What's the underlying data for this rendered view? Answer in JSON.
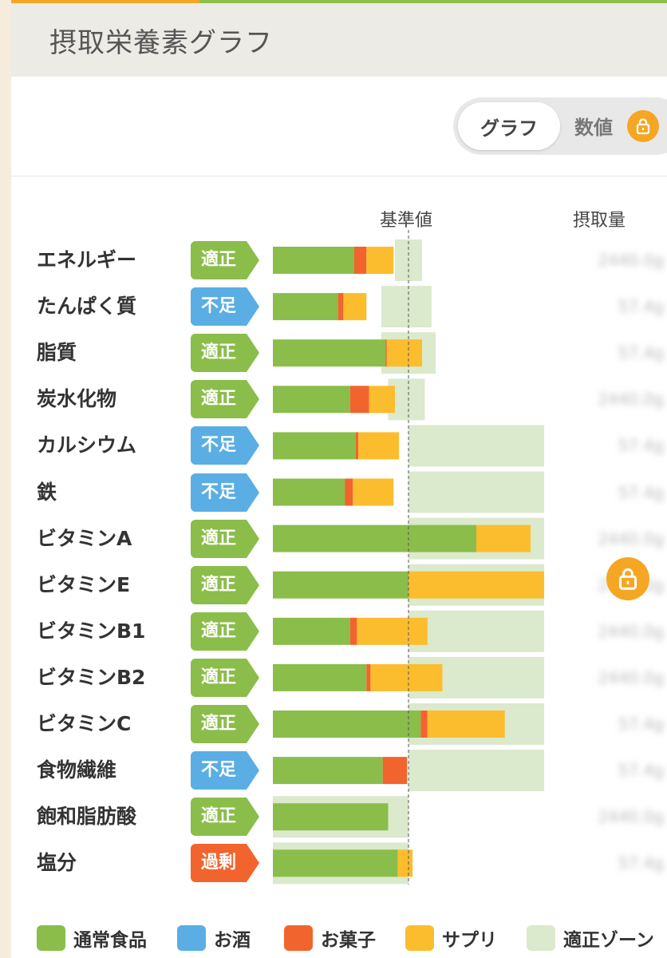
{
  "header": {
    "title": "摂取栄養素グラフ"
  },
  "toggle": {
    "graph_label": "グラフ",
    "value_label": "数値",
    "lock_icon": "lock-icon"
  },
  "columns": {
    "baseline_label": "基準値",
    "intake_label": "摂取量"
  },
  "colors": {
    "normal_food": "#8bbd4a",
    "alcohol": "#5aaee3",
    "snacks": "#f2642d",
    "supplement": "#fbbd2d",
    "ok_zone": "#dbe9cc",
    "status_ok": "#8bbd4a",
    "status_low": "#5aaee3",
    "status_high": "#f2642d"
  },
  "legend": [
    {
      "label": "通常食品",
      "color": "#8bbd4a"
    },
    {
      "label": "お酒",
      "color": "#5aaee3"
    },
    {
      "label": "お菓子",
      "color": "#f2642d"
    },
    {
      "label": "サプリ",
      "color": "#fbbd2d"
    },
    {
      "label": "適正ゾーン",
      "color": "#dbe9cc"
    }
  ],
  "status_labels": {
    "ok": "適正",
    "low": "不足",
    "high": "過剰"
  },
  "chart_data": {
    "type": "bar",
    "orientation": "horizontal",
    "stacked": true,
    "baseline_value": 100,
    "x_unit": "% of baseline",
    "xlim": [
      0,
      200
    ],
    "categories": [
      "エネルギー",
      "たんぱく質",
      "脂質",
      "炭水化物",
      "カルシウム",
      "鉄",
      "ビタミンA",
      "ビタミンE",
      "ビタミンB1",
      "ビタミンB2",
      "ビタミンC",
      "食物繊維",
      "飽和脂肪酸",
      "塩分"
    ],
    "status": [
      "ok",
      "low",
      "ok",
      "ok",
      "low",
      "low",
      "ok",
      "ok",
      "ok",
      "ok",
      "ok",
      "low",
      "ok",
      "high"
    ],
    "series": [
      {
        "name": "通常食品",
        "values": [
          60,
          48,
          83,
          57,
          61,
          53,
          150,
          100,
          57,
          69,
          109,
          81,
          85,
          92
        ]
      },
      {
        "name": "お菓子",
        "values": [
          9,
          4,
          1,
          14,
          2,
          6,
          0,
          0,
          5,
          3,
          5,
          18,
          0,
          0
        ]
      },
      {
        "name": "サプリ",
        "values": [
          20,
          17,
          26,
          19,
          30,
          30,
          40,
          100,
          52,
          53,
          57,
          0,
          0,
          11
        ]
      }
    ],
    "ok_zone": [
      [
        90,
        110
      ],
      [
        80,
        117
      ],
      [
        80,
        120
      ],
      [
        85,
        112
      ],
      [
        100,
        200
      ],
      [
        100,
        200
      ],
      [
        100,
        200
      ],
      [
        100,
        200
      ],
      [
        100,
        200
      ],
      [
        100,
        200
      ],
      [
        100,
        200
      ],
      [
        100,
        200
      ],
      [
        0,
        100
      ],
      [
        0,
        100
      ]
    ]
  },
  "intake_values_obscured": true,
  "intake_values": [
    "2440.0g",
    "57.4g",
    "57.4g",
    "2440.0g",
    "57.4g",
    "57.4g",
    "2440.0g",
    "2440.0g",
    "2440.0g",
    "2440.0g",
    "57.4g",
    "57.4g",
    "2440.0g",
    "57.4g"
  ]
}
